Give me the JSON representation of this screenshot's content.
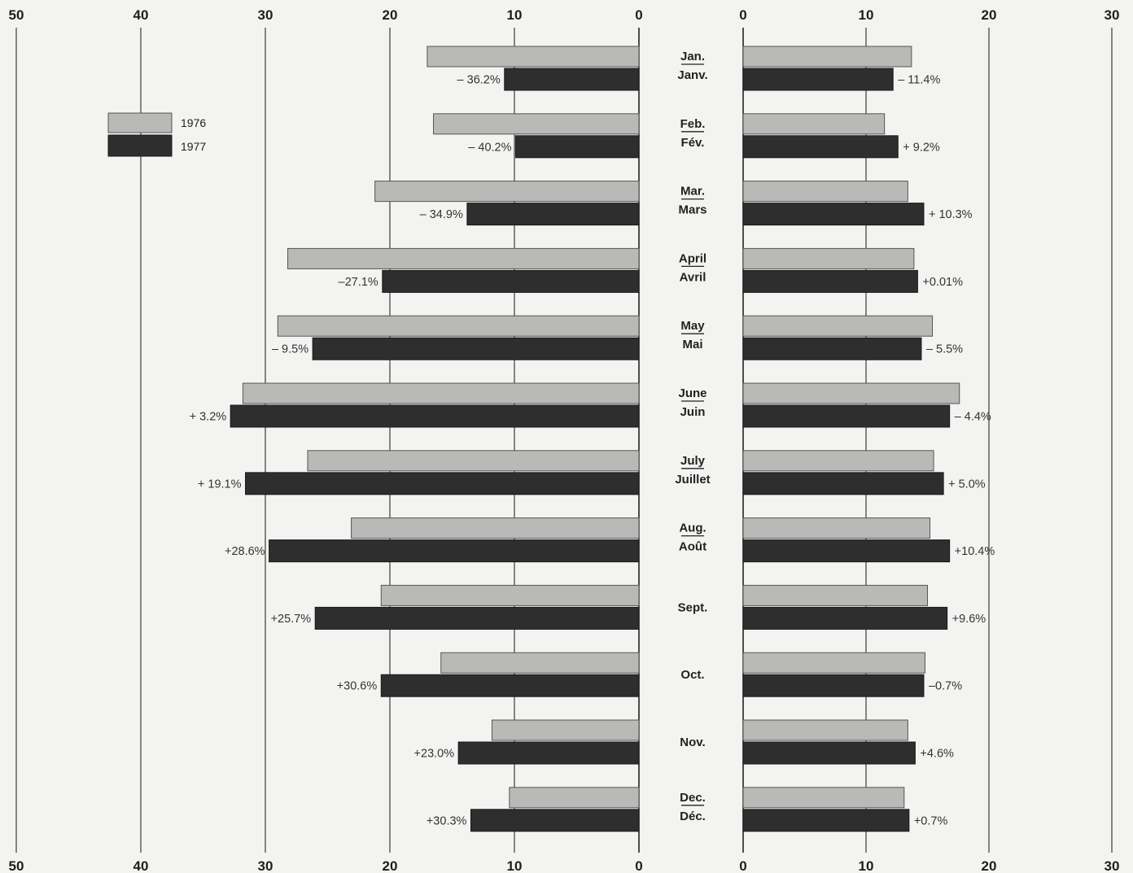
{
  "chart_data": {
    "type": "bar",
    "orientation": "horizontal",
    "layout": "back-to-back",
    "legend": {
      "position": "top-left",
      "entries": [
        "1976",
        "1977"
      ]
    },
    "series_colors": {
      "1976": "#b9b9b7",
      "1977": "#2e2e2e"
    },
    "months": [
      {
        "en": "Jan.",
        "fr": "Janv.",
        "left_pct": "– 36.2%",
        "right_pct": "– 11.4%"
      },
      {
        "en": "Feb.",
        "fr": "Fév.",
        "left_pct": "– 40.2%",
        "right_pct": "+ 9.2%"
      },
      {
        "en": "Mar.",
        "fr": "Mars",
        "left_pct": "– 34.9%",
        "right_pct": "+ 10.3%"
      },
      {
        "en": "April",
        "fr": "Avril",
        "left_pct": "–27.1%",
        "right_pct": "+0.01%"
      },
      {
        "en": "May",
        "fr": "Mai",
        "left_pct": "– 9.5%",
        "right_pct": "– 5.5%"
      },
      {
        "en": "June",
        "fr": "Juin",
        "left_pct": "+ 3.2%",
        "right_pct": "– 4.4%"
      },
      {
        "en": "July",
        "fr": "Juillet",
        "left_pct": "+ 19.1%",
        "right_pct": "+ 5.0%"
      },
      {
        "en": "Aug.",
        "fr": "Août",
        "left_pct": "+28.6%",
        "right_pct": "+10.4%"
      },
      {
        "en": "Sept.",
        "fr": "",
        "left_pct": "+25.7%",
        "right_pct": "+9.6%"
      },
      {
        "en": "Oct.",
        "fr": "",
        "left_pct": "+30.6%",
        "right_pct": "–0.7%"
      },
      {
        "en": "Nov.",
        "fr": "",
        "left_pct": "+23.0%",
        "right_pct": "+4.6%"
      },
      {
        "en": "Dec.",
        "fr": "Déc.",
        "left_pct": "+30.3%",
        "right_pct": "+0.7%"
      }
    ],
    "left_panel": {
      "xlim": [
        0,
        50
      ],
      "ticks": [
        50,
        40,
        30,
        20,
        10,
        0
      ],
      "series": [
        {
          "name": "1976",
          "values": [
            17,
            16.5,
            21.2,
            28.2,
            29,
            31.8,
            26.6,
            23.1,
            20.7,
            15.9,
            11.8,
            10.4
          ]
        },
        {
          "name": "1977",
          "values": [
            10.8,
            9.9,
            13.8,
            20.6,
            26.2,
            32.8,
            31.6,
            29.7,
            26,
            20.7,
            14.5,
            13.5
          ]
        }
      ]
    },
    "right_panel": {
      "xlim": [
        0,
        30
      ],
      "ticks": [
        0,
        10,
        20,
        30
      ],
      "series": [
        {
          "name": "1976",
          "values": [
            13.7,
            11.5,
            13.4,
            13.9,
            15.4,
            17.6,
            15.5,
            15.2,
            15,
            14.8,
            13.4,
            13.1
          ]
        },
        {
          "name": "1977",
          "values": [
            12.2,
            12.6,
            14.7,
            14.2,
            14.5,
            16.8,
            16.3,
            16.8,
            16.6,
            14.7,
            14,
            13.5
          ]
        }
      ]
    }
  }
}
